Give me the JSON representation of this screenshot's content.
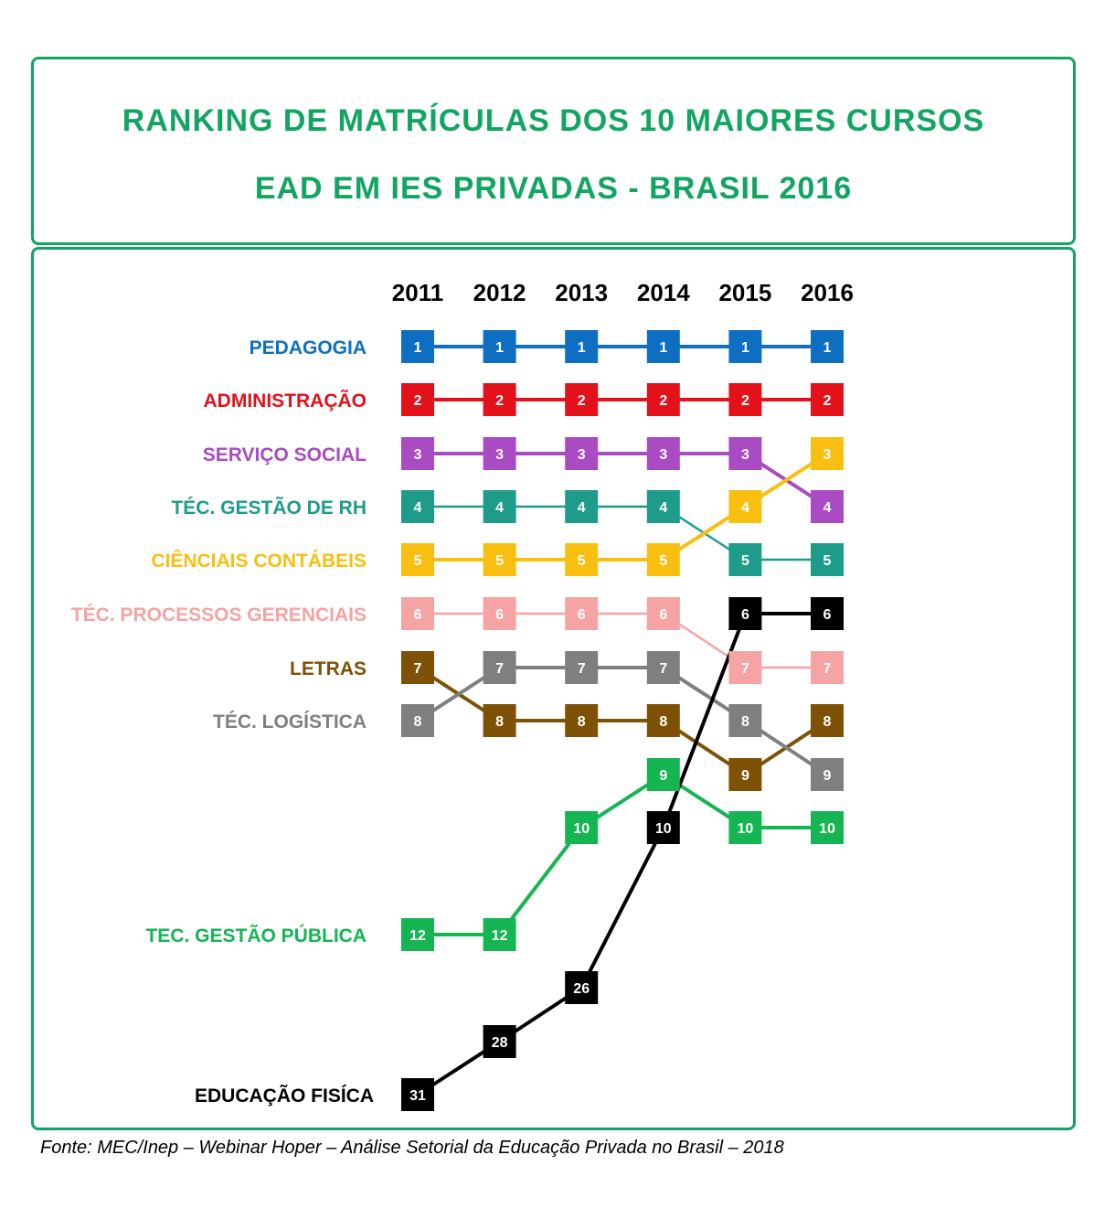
{
  "title": {
    "line1": "RANKING DE MATRÍCULAS DOS 10 MAIORES CURSOS",
    "line2": "EAD EM IES PRIVADAS - BRASIL  2016"
  },
  "source": "Fonte: MEC/Inep – Webinar Hoper – Análise Setorial da Educação Privada no Brasil – 2018",
  "chart_data": {
    "type": "line",
    "title": "RANKING DE MATRÍCULAS DOS 10 MAIORES CURSOS EAD EM IES PRIVADAS - BRASIL  2016",
    "x": [
      "2011",
      "2012",
      "2013",
      "2014",
      "2015",
      "2016"
    ],
    "xlabel": "",
    "ylabel": "",
    "y_inverted": true,
    "grid": false,
    "series": [
      {
        "name": "PEDAGOGIA",
        "color": "#0e6fc2",
        "values": [
          1,
          1,
          1,
          1,
          1,
          1
        ]
      },
      {
        "name": "ADMINISTRAÇÃO",
        "color": "#e3111a",
        "values": [
          2,
          2,
          2,
          2,
          2,
          2
        ]
      },
      {
        "name": "SERVIÇO SOCIAL",
        "color": "#a94bc3",
        "values": [
          3,
          3,
          3,
          3,
          3,
          4
        ]
      },
      {
        "name": "TÉC. GESTÃO DE RH",
        "color": "#1e9c89",
        "values": [
          4,
          4,
          4,
          4,
          5,
          5
        ]
      },
      {
        "name": "CIÊNCIAIS CONTÁBEIS",
        "color": "#f8bf10",
        "values": [
          5,
          5,
          5,
          5,
          4,
          3
        ]
      },
      {
        "name": "TÉC. PROCESSOS GERENCIAIS",
        "color": "#f6a3a3",
        "values": [
          6,
          6,
          6,
          6,
          7,
          7
        ]
      },
      {
        "name": "LETRAS",
        "color": "#7d5207",
        "values": [
          7,
          8,
          8,
          8,
          9,
          8
        ]
      },
      {
        "name": "TÉC. LOGÍSTICA",
        "color": "#7f7f7f",
        "values": [
          8,
          7,
          7,
          7,
          8,
          9
        ]
      },
      {
        "name": "TEC. GESTÃO PÚBLICA",
        "color": "#14b552",
        "values": [
          12,
          12,
          10,
          9,
          10,
          10
        ]
      },
      {
        "name": "EDUCAÇÃO FISÍCA",
        "color": "#000000",
        "values": [
          31,
          28,
          26,
          10,
          6,
          6
        ]
      }
    ]
  }
}
